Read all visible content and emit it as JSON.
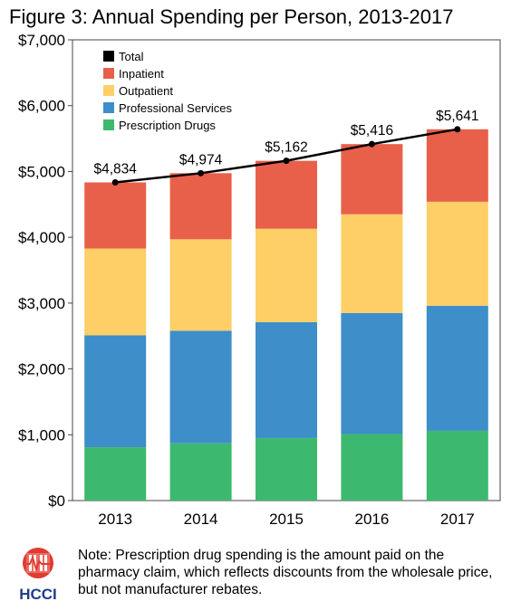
{
  "title": "Figure 3: Annual Spending per Person, 2013-2017",
  "chart_data": {
    "type": "bar",
    "stacked": true,
    "categories": [
      "2013",
      "2014",
      "2015",
      "2016",
      "2017"
    ],
    "series": [
      {
        "name": "Prescription Drugs",
        "color": "#3cb96e",
        "values": [
          810,
          870,
          950,
          1010,
          1060
        ]
      },
      {
        "name": "Professional Services",
        "color": "#3d8ec9",
        "values": [
          1700,
          1710,
          1760,
          1840,
          1900
        ]
      },
      {
        "name": "Outpatient",
        "color": "#fdcf66",
        "values": [
          1320,
          1390,
          1420,
          1500,
          1580
        ]
      },
      {
        "name": "Inpatient",
        "color": "#e8604a",
        "values": [
          1004,
          1004,
          1032,
          1066,
          1101
        ]
      }
    ],
    "total": {
      "name": "Total",
      "color": "#000000",
      "values": [
        4834,
        4974,
        5162,
        5416,
        5641
      ],
      "labels": [
        "$4,834",
        "$4,974",
        "$5,162",
        "$5,416",
        "$5,641"
      ]
    },
    "ylim": [
      0,
      7000
    ],
    "yticks": [
      0,
      1000,
      2000,
      3000,
      4000,
      5000,
      6000,
      7000
    ],
    "ytick_labels": [
      "$0",
      "$1,000",
      "$2,000",
      "$3,000",
      "$4,000",
      "$5,000",
      "$6,000",
      "$7,000"
    ],
    "legend_order": [
      "Total",
      "Inpatient",
      "Outpatient",
      "Professional Services",
      "Prescription Drugs"
    ],
    "legend_position": "top-left",
    "grid": false
  },
  "footer": {
    "logo_text": "HCCI",
    "note": "Note: Prescription drug spending is the amount paid on the pharmacy claim, which reflects discounts from the wholesale price, but not manufacturer rebates."
  }
}
